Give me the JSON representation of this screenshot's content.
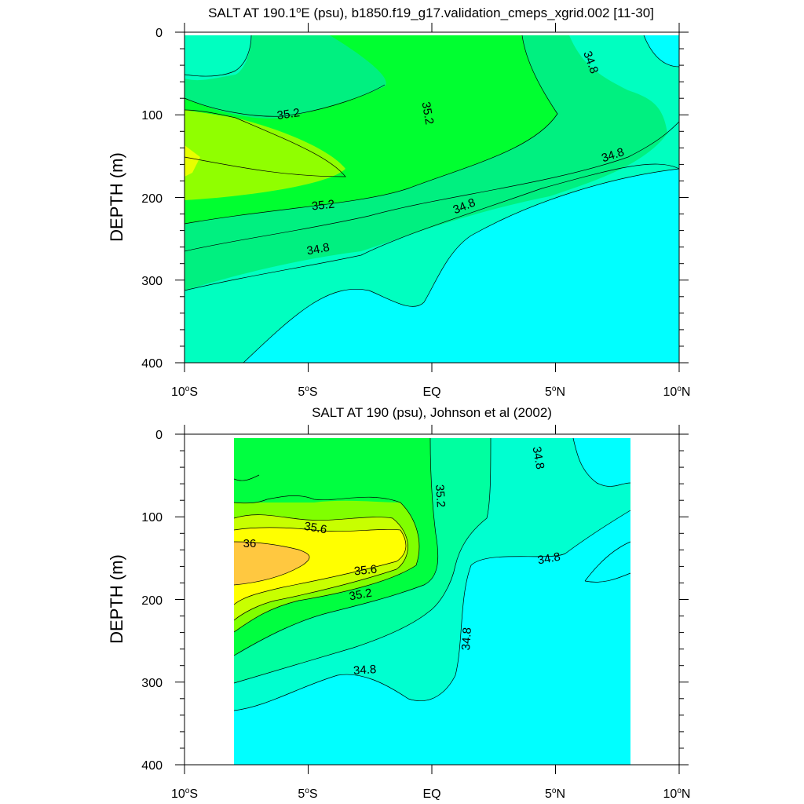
{
  "chart_data": [
    {
      "type": "contour",
      "title": "SALT AT 190.1°E (psu), b1850.f19_g17.validation_cmeps_xgrid.002 [11-30]",
      "title_main": "SALT AT 190.1",
      "title_sup": "o",
      "title_rest": "E (psu), b1850.f19_g17.validation_cmeps_xgrid.002 [11-30]",
      "ylabel": "DEPTH (m)",
      "xlim": [
        -10,
        10
      ],
      "ylim": [
        400,
        0
      ],
      "yticks": [
        "0",
        "100",
        "200",
        "300",
        "400"
      ],
      "xticks": [
        {
          "num": "10",
          "sup": "o",
          "hem": "S"
        },
        {
          "num": "5",
          "sup": "o",
          "hem": "S"
        },
        {
          "num": "EQ",
          "sup": "",
          "hem": ""
        },
        {
          "num": "5",
          "sup": "o",
          "hem": "N"
        },
        {
          "num": "10",
          "sup": "o",
          "hem": "N"
        }
      ],
      "contour_labels": [
        "35.2",
        "35.2",
        "34.8",
        "34.8",
        "35.2",
        "34.8",
        "34.8"
      ],
      "colors": {
        "lt34.8": "#00ffff",
        "34.8-35.0": "#00ffc0",
        "35.0-35.2": "#00f080",
        "35.2-35.4": "#00ff30",
        "35.4-35.6": "#90ff00",
        "35.6-35.8": "#e8ff00"
      }
    },
    {
      "type": "contour",
      "title": "SALT AT 190 (psu), Johnson et al (2002)",
      "ylabel": "DEPTH (m)",
      "xlim": [
        -10,
        10
      ],
      "ylim": [
        400,
        0
      ],
      "data_x_range": [
        -8,
        8
      ],
      "yticks": [
        "0",
        "100",
        "200",
        "300",
        "400"
      ],
      "xticks": [
        {
          "num": "10",
          "sup": "o",
          "hem": "S"
        },
        {
          "num": "5",
          "sup": "o",
          "hem": "S"
        },
        {
          "num": "EQ",
          "sup": "",
          "hem": ""
        },
        {
          "num": "5",
          "sup": "o",
          "hem": "N"
        },
        {
          "num": "10",
          "sup": "o",
          "hem": "N"
        }
      ],
      "contour_labels": [
        "34.8",
        "35.2",
        "35.6",
        "36",
        "35.6",
        "35.2",
        "34.8",
        "34.8",
        "34.8"
      ],
      "colors": {
        "lt34.8": "#00ffff",
        "34.8-35.0": "#00ffd0",
        "35.0-35.2": "#00ffa0",
        "35.2-35.4": "#00ff40",
        "35.4-35.6": "#80ff00",
        "35.6-35.8": "#c8ff00",
        "35.8-36.0": "#ffff00",
        "gt36.0": "#ffc840"
      }
    }
  ]
}
